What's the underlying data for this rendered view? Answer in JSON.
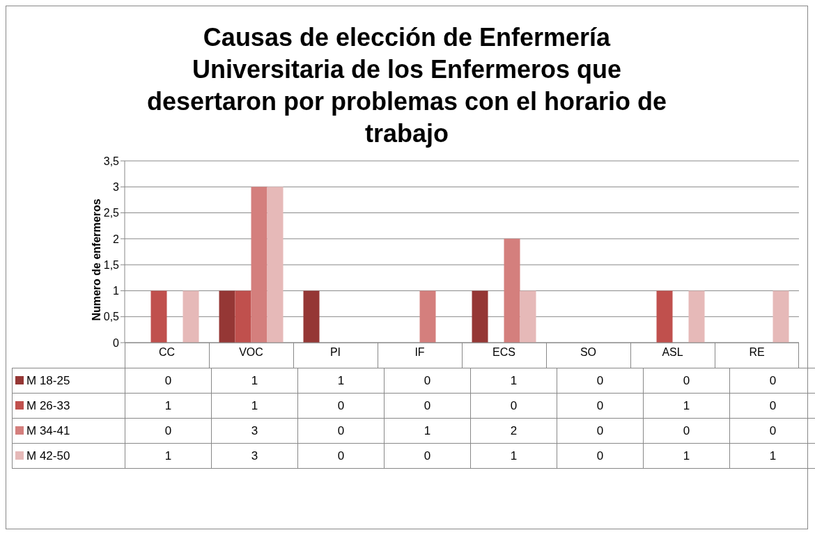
{
  "chart_data": {
    "type": "bar",
    "title": "Causas de elección de Enfermería Universitaria de los Enfermeros que desertaron por problemas con el horario de trabajo",
    "ylabel": "Numero de enfermeros",
    "categories": [
      "CC",
      "VOC",
      "PI",
      "IF",
      "ECS",
      "SO",
      "ASL",
      "RE"
    ],
    "series": [
      {
        "name": "M 18-25",
        "color": "#953735",
        "values": [
          0,
          1,
          1,
          0,
          1,
          0,
          0,
          0
        ]
      },
      {
        "name": "M 26-33",
        "color": "#c0504d",
        "values": [
          1,
          1,
          0,
          0,
          0,
          0,
          1,
          0
        ]
      },
      {
        "name": "M 34-41",
        "color": "#d47f7d",
        "values": [
          0,
          3,
          0,
          1,
          2,
          0,
          0,
          0
        ]
      },
      {
        "name": "M 42-50",
        "color": "#e6b9b8",
        "values": [
          1,
          3,
          0,
          0,
          1,
          0,
          1,
          1
        ]
      }
    ],
    "ylim": [
      0,
      3.5
    ],
    "yticks": [
      0,
      {
        "value": 0.5,
        "label": "0,5"
      },
      1,
      {
        "value": 1.5,
        "label": "1,5"
      },
      2,
      {
        "value": 2.5,
        "label": "2,5"
      },
      3,
      {
        "value": 3.5,
        "label": "3,5"
      }
    ],
    "grid": "y",
    "legend": "bottom",
    "data_labels": true
  }
}
